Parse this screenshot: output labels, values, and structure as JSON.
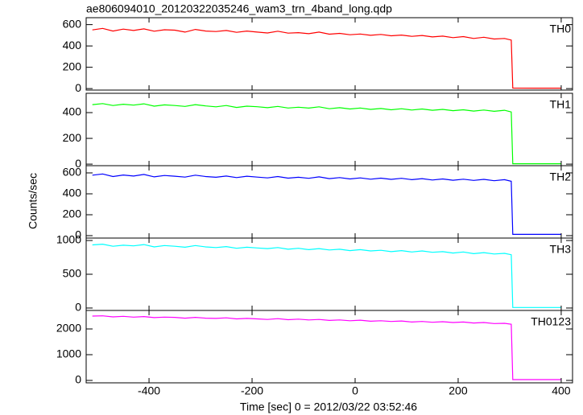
{
  "title": "ae806094010_20120322035246_wam3_trn_4band_long.qdp",
  "xlabel": "Time [sec] 0 = 2012/03/22 03:52:46",
  "ylabel": "Counts/sec",
  "chart_data": [
    {
      "type": "line",
      "label": "TH0",
      "xlim": [
        -522,
        422
      ],
      "ylim": [
        -14,
        665
      ],
      "yticks": [
        0,
        200,
        400,
        600
      ],
      "x": [
        -510,
        -490,
        -470,
        -450,
        -430,
        -410,
        -390,
        -370,
        -350,
        -330,
        -310,
        -290,
        -270,
        -250,
        -230,
        -210,
        -190,
        -170,
        -150,
        -130,
        -110,
        -90,
        -70,
        -50,
        -30,
        -10,
        10,
        30,
        50,
        70,
        90,
        110,
        130,
        150,
        170,
        190,
        210,
        230,
        250,
        270,
        290,
        303,
        306,
        350,
        400
      ],
      "series": [
        {
          "name": "TH0",
          "color": "#ff0000",
          "values": [
            550,
            565,
            540,
            558,
            545,
            560,
            538,
            552,
            548,
            530,
            555,
            540,
            535,
            545,
            528,
            540,
            530,
            522,
            538,
            520,
            525,
            515,
            530,
            510,
            518,
            505,
            512,
            500,
            508,
            495,
            502,
            490,
            498,
            485,
            492,
            478,
            488,
            470,
            482,
            465,
            470,
            455,
            5,
            4,
            4
          ]
        }
      ]
    },
    {
      "type": "line",
      "label": "TH1",
      "xlim": [
        -522,
        422
      ],
      "ylim": [
        -12,
        550
      ],
      "yticks": [
        0,
        200,
        400
      ],
      "x": [
        -510,
        -490,
        -470,
        -450,
        -430,
        -410,
        -390,
        -370,
        -350,
        -330,
        -310,
        -290,
        -270,
        -250,
        -230,
        -210,
        -190,
        -170,
        -150,
        -130,
        -110,
        -90,
        -70,
        -50,
        -30,
        -10,
        10,
        30,
        50,
        70,
        90,
        110,
        130,
        150,
        170,
        190,
        210,
        230,
        250,
        270,
        290,
        303,
        306,
        350,
        400
      ],
      "series": [
        {
          "name": "TH1",
          "color": "#00ff00",
          "values": [
            462,
            470,
            455,
            465,
            458,
            468,
            450,
            460,
            455,
            448,
            462,
            452,
            445,
            455,
            440,
            450,
            446,
            438,
            448,
            436,
            442,
            435,
            445,
            430,
            438,
            428,
            436,
            425,
            432,
            422,
            430,
            420,
            428,
            418,
            425,
            415,
            422,
            412,
            420,
            410,
            418,
            405,
            3,
            3,
            3
          ]
        }
      ]
    },
    {
      "type": "line",
      "label": "TH2",
      "xlim": [
        -522,
        422
      ],
      "ylim": [
        -23,
        669
      ],
      "yticks": [
        0,
        200,
        400,
        600
      ],
      "x": [
        -510,
        -490,
        -470,
        -450,
        -430,
        -410,
        -390,
        -370,
        -350,
        -330,
        -310,
        -290,
        -270,
        -250,
        -230,
        -210,
        -190,
        -170,
        -150,
        -130,
        -110,
        -90,
        -70,
        -50,
        -30,
        -10,
        10,
        30,
        50,
        70,
        90,
        110,
        130,
        150,
        170,
        190,
        210,
        230,
        250,
        270,
        290,
        303,
        306,
        350,
        400
      ],
      "series": [
        {
          "name": "TH2",
          "color": "#0000ff",
          "values": [
            578,
            590,
            565,
            580,
            570,
            585,
            562,
            575,
            568,
            560,
            578,
            565,
            558,
            570,
            555,
            568,
            560,
            552,
            565,
            550,
            558,
            548,
            562,
            545,
            555,
            542,
            552,
            540,
            550,
            538,
            548,
            535,
            545,
            532,
            542,
            530,
            540,
            528,
            538,
            525,
            535,
            520,
            12,
            12,
            12
          ]
        }
      ]
    },
    {
      "type": "line",
      "label": "TH3",
      "xlim": [
        -522,
        422
      ],
      "ylim": [
        -36,
        1036
      ],
      "yticks": [
        0,
        500,
        1000
      ],
      "x": [
        -510,
        -490,
        -470,
        -450,
        -430,
        -410,
        -390,
        -370,
        -350,
        -330,
        -310,
        -290,
        -270,
        -250,
        -230,
        -210,
        -190,
        -170,
        -150,
        -130,
        -110,
        -90,
        -70,
        -50,
        -30,
        -10,
        10,
        30,
        50,
        70,
        90,
        110,
        130,
        150,
        170,
        190,
        210,
        230,
        250,
        270,
        290,
        303,
        306,
        350,
        400
      ],
      "series": [
        {
          "name": "TH3",
          "color": "#00ffff",
          "values": [
            935,
            945,
            915,
            930,
            920,
            940,
            905,
            925,
            915,
            900,
            925,
            905,
            895,
            910,
            885,
            900,
            890,
            880,
            895,
            870,
            885,
            865,
            880,
            860,
            870,
            850,
            865,
            845,
            855,
            835,
            850,
            830,
            845,
            825,
            835,
            815,
            830,
            805,
            820,
            800,
            810,
            790,
            8,
            8,
            8
          ]
        }
      ]
    },
    {
      "type": "line",
      "label": "TH0123",
      "xlim": [
        -522,
        422
      ],
      "ylim": [
        -94,
        2719
      ],
      "yticks": [
        0,
        1000,
        2000
      ],
      "xticks": [
        -400,
        -200,
        0,
        200,
        400
      ],
      "x": [
        -510,
        -490,
        -470,
        -450,
        -430,
        -410,
        -390,
        -370,
        -350,
        -330,
        -310,
        -290,
        -270,
        -250,
        -230,
        -210,
        -190,
        -170,
        -150,
        -130,
        -110,
        -90,
        -70,
        -50,
        -30,
        -10,
        10,
        30,
        50,
        70,
        90,
        110,
        130,
        150,
        170,
        190,
        210,
        230,
        250,
        270,
        290,
        303,
        306,
        350,
        400
      ],
      "series": [
        {
          "name": "TH0123",
          "color": "#ff00ff",
          "values": [
            2500,
            2510,
            2470,
            2490,
            2460,
            2480,
            2440,
            2460,
            2450,
            2420,
            2450,
            2420,
            2410,
            2430,
            2390,
            2410,
            2390,
            2370,
            2400,
            2360,
            2380,
            2350,
            2370,
            2330,
            2350,
            2320,
            2340,
            2300,
            2320,
            2290,
            2310,
            2270,
            2290,
            2260,
            2280,
            2250,
            2270,
            2230,
            2250,
            2210,
            2220,
            2180,
            30,
            30,
            30
          ]
        }
      ]
    }
  ]
}
